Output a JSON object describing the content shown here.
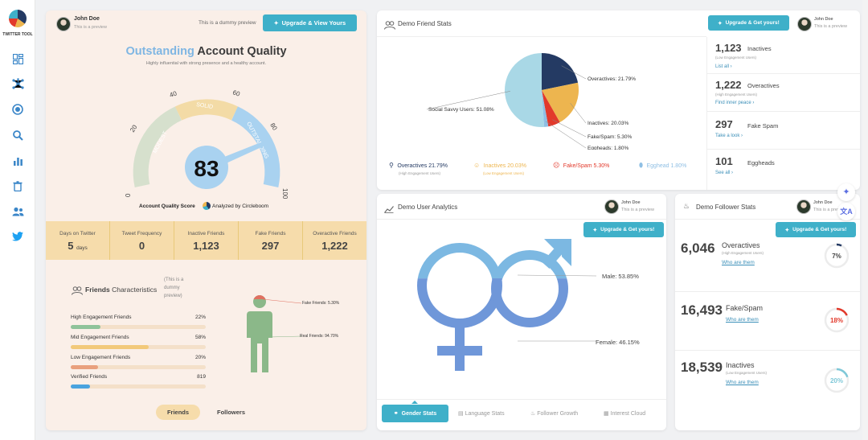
{
  "app": {
    "logo_text": "TWITTER TOOL"
  },
  "sidebar": {
    "items": [
      "dashboard-icon",
      "network-icon",
      "target-icon",
      "search-icon",
      "bar-chart-icon",
      "trash-icon",
      "users-icon",
      "twitter-icon"
    ]
  },
  "quality_card": {
    "user_name": "John Doe",
    "user_sub": "This is a preview",
    "dummy_note": "This is a dummy preview",
    "upgrade_label": "Upgrade & View Yours",
    "title_highlight": "Outstanding",
    "title_rest": "Account Quality",
    "subtitle": "Highly influential with strong presence and a healthy account.",
    "score": "83",
    "gauge_labels": {
      "modest": "MODEST",
      "solid": "SOLID",
      "outstanding": "OUTSTANDING"
    },
    "gauge_ticks": [
      "0",
      "20",
      "40",
      "60",
      "80",
      "100"
    ],
    "score_label": "Account Quality Score",
    "analyzed_by": "Analyzed by Circleboom",
    "stats": [
      {
        "label": "Days on Twitter",
        "value": "5",
        "unit": "days"
      },
      {
        "label": "Tweet Frequency",
        "value": "0",
        "unit": ""
      },
      {
        "label": "Inactive Friends",
        "value": "1,123",
        "unit": ""
      },
      {
        "label": "Fake Friends",
        "value": "297",
        "unit": ""
      },
      {
        "label": "Overactive Friends",
        "value": "1,222",
        "unit": ""
      }
    ],
    "friends_title_a": "Friends",
    "friends_title_b": "Characteristics",
    "friends_dummy": "(This is a dummy preview)",
    "characteristics": [
      {
        "label": "High Engagement Friends",
        "value": "22%",
        "fraction": 0.22,
        "color": "#8fc39a"
      },
      {
        "label": "Mid Engagement Friends",
        "value": "58%",
        "fraction": 0.58,
        "color": "#f2c97a"
      },
      {
        "label": "Low Engagement Friends",
        "value": "20%",
        "fraction": 0.2,
        "color": "#e9a07d"
      },
      {
        "label": "Verified Friends",
        "value": "819",
        "fraction": 0.14,
        "color": "#4aa3df"
      }
    ],
    "person_fake_label": "Fake Friends: 5.30%",
    "person_real_label": "Real Friends: 94.70%",
    "toggle_friends": "Friends",
    "toggle_followers": "Followers"
  },
  "friend_stats": {
    "title": "Demo Friend Stats",
    "upgrade_label": "Upgrade & Get yours!",
    "user_name": "John Doe",
    "user_sub": "This is a preview",
    "chart_data": {
      "type": "pie",
      "categories": [
        "Social Savvy Users",
        "Overactives",
        "Inactives",
        "Fake/Spam",
        "Eggheads"
      ],
      "values": [
        51.08,
        21.79,
        20.03,
        5.3,
        1.8
      ],
      "colors": [
        "#a9d8e6",
        "#243a63",
        "#edb54f",
        "#e2392b",
        "#8fbfe4"
      ],
      "labels": [
        "Social Savvy Users: 51.08%",
        "Overactives: 21.79%",
        "Inactives: 20.03%",
        "Fake/Spam: 5.30%",
        "Eggheads: 1.80%"
      ]
    },
    "legend": [
      {
        "label": "Overactives 21.79%",
        "sub": "(High Engagement Users)",
        "color": "#243a63"
      },
      {
        "label": "Inactives 20.03%",
        "sub": "(Low Engagement Users)",
        "color": "#edb54f"
      },
      {
        "label": "Fake/Spam 5.30%",
        "sub": "",
        "color": "#e2392b"
      },
      {
        "label": "Egghead 1.80%",
        "sub": "",
        "color": "#8fbfe4"
      }
    ],
    "side": [
      {
        "value": "1,123",
        "label": "Inactives",
        "sub": "(Low Engagement Users)",
        "link": "List all ›"
      },
      {
        "value": "1,222",
        "label": "Overactives",
        "sub": "(High Engagement Users)",
        "link": "Find inner peace ›"
      },
      {
        "value": "297",
        "label": "Fake Spam",
        "sub": "",
        "link": "Take a look ›"
      },
      {
        "value": "101",
        "label": "Eggheads",
        "sub": "",
        "link": "See all ›"
      }
    ]
  },
  "user_analytics": {
    "title": "Demo User Analytics",
    "user_name": "John Doe",
    "user_sub": "This is a preview",
    "upgrade_label": "Upgrade & Get yours!",
    "male_label": "Male: 53.85%",
    "female_label": "Female: 46.15%",
    "male_fraction": 0.5385,
    "female_fraction": 0.4615,
    "tabs": [
      "Gender Stats",
      "Language Stats",
      "Follower Growth",
      "Interest Cloud"
    ]
  },
  "follower_stats": {
    "title": "Demo Follower Stats",
    "user_name": "John Doe",
    "user_sub": "This is a preview",
    "upgrade_label": "Upgrade & Get yours!",
    "rows": [
      {
        "value": "6,046",
        "label": "Overactives",
        "sub": "(High Engagement Users)",
        "link": "Who are them",
        "percent": "7%",
        "fraction": 0.07,
        "color": "#243a63"
      },
      {
        "value": "16,493",
        "label": "Fake/Spam",
        "sub": "",
        "link": "Who are them",
        "percent": "18%",
        "fraction": 0.18,
        "color": "#e2392b"
      },
      {
        "value": "18,539",
        "label": "Inactives",
        "sub": "(Low Engagement Users)",
        "link": "Who are them",
        "percent": "20%",
        "fraction": 0.2,
        "color": "#7fc8d8"
      }
    ]
  },
  "floating": {
    "sparkle": "sparkle-icon",
    "translate": "translate-icon"
  }
}
